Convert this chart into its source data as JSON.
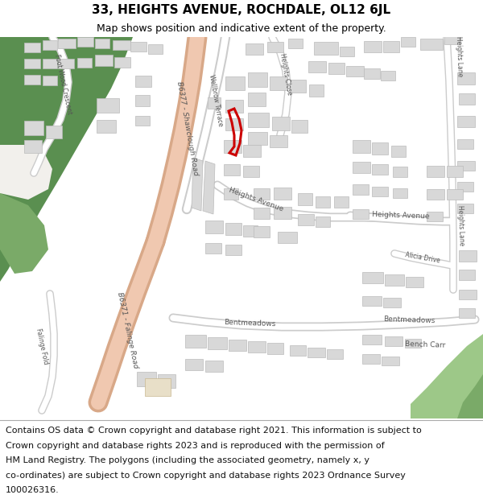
{
  "title": "33, HEIGHTS AVENUE, ROCHDALE, OL12 6JL",
  "subtitle": "Map shows position and indicative extent of the property.",
  "footer_lines": [
    "Contains OS data © Crown copyright and database right 2021. This information is subject to",
    "Crown copyright and database rights 2023 and is reproduced with the permission of",
    "HM Land Registry. The polygons (including the associated geometry, namely x, y",
    "co-ordinates) are subject to Crown copyright and database rights 2023 Ordnance Survey",
    "100026316."
  ],
  "bg_color": "#f2f0ec",
  "road_main_fill": "#f0c8b0",
  "road_main_edge": "#d8a888",
  "road_minor_fill": "#ffffff",
  "road_minor_edge": "#cccccc",
  "green_dark": "#5a8f50",
  "green_mid": "#7aaa68",
  "green_light": "#9dc888",
  "building_fill": "#d8d8d8",
  "building_edge": "#bbbbbb",
  "highlight": "#cc0000",
  "white": "#ffffff",
  "header_fs": 11,
  "subtitle_fs": 9,
  "footer_fs": 8,
  "label_fs": 6.5,
  "label_sm": 5.5
}
